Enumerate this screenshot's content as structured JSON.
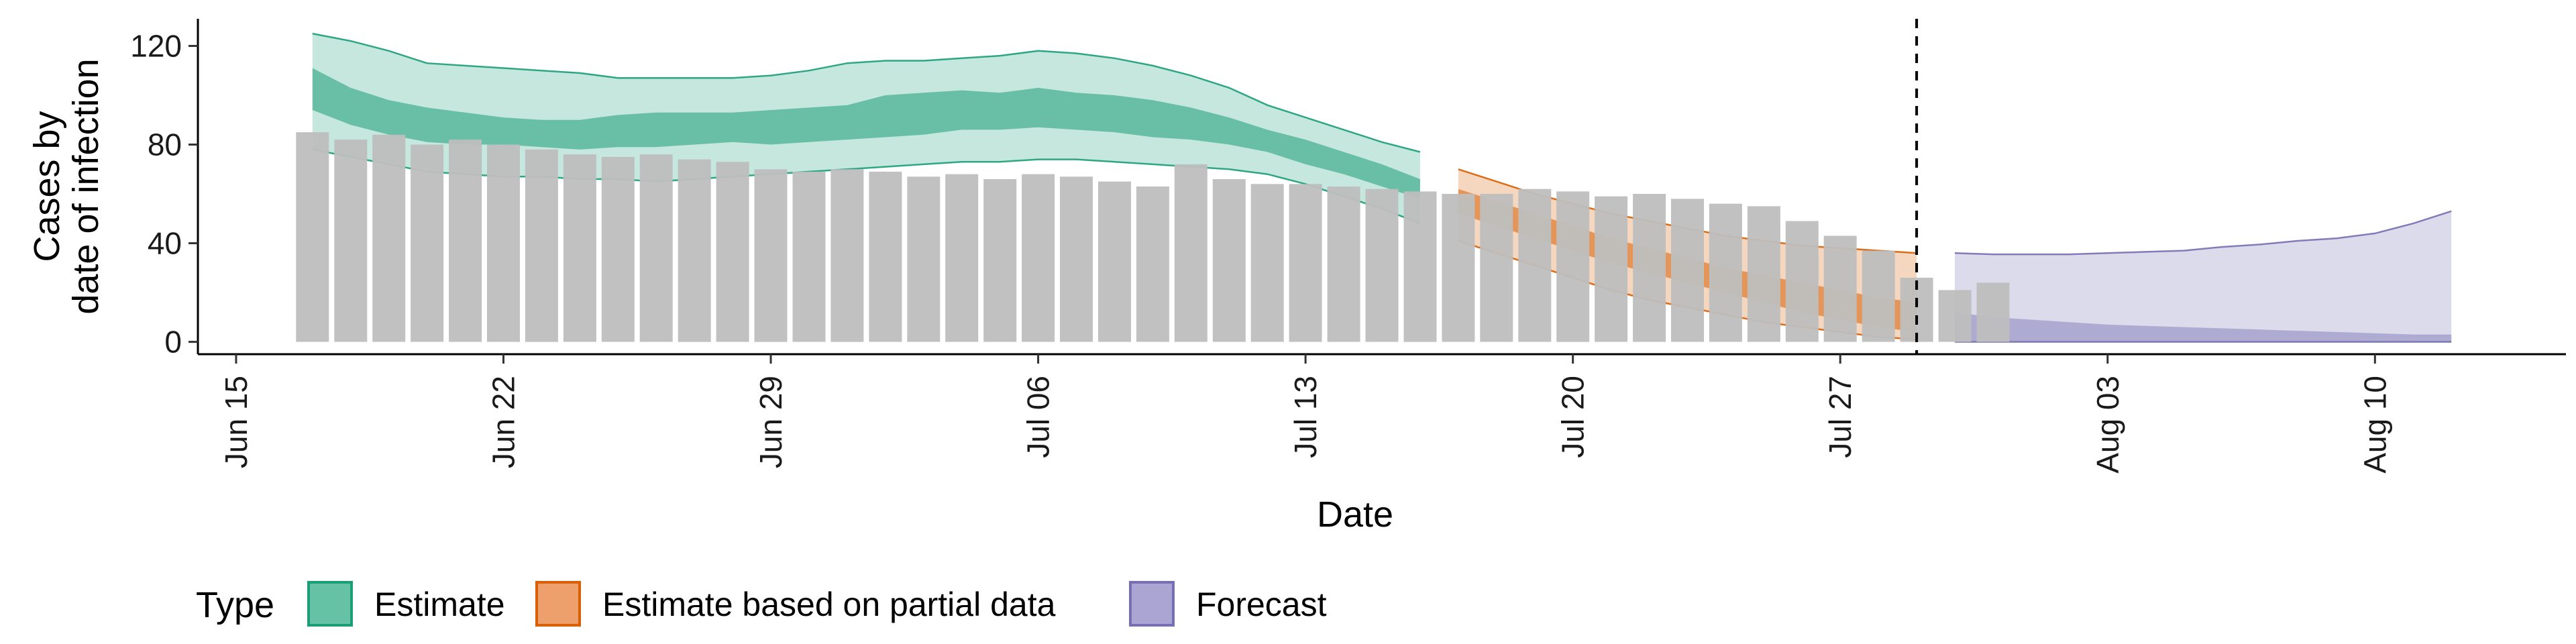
{
  "chart_data": {
    "type": "bar",
    "xlabel": "Date",
    "ylabel_lines": [
      "Cases by",
      "date of infection"
    ],
    "y_ticks": [
      0,
      40,
      80,
      120
    ],
    "ylim": [
      -5,
      131
    ],
    "xlim": [
      "2020-06-14",
      "2020-08-15"
    ],
    "x_ticks": [
      {
        "date": "2020-06-15",
        "label": "Jun 15"
      },
      {
        "date": "2020-06-22",
        "label": "Jun 22"
      },
      {
        "date": "2020-06-29",
        "label": "Jun 29"
      },
      {
        "date": "2020-07-06",
        "label": "Jul 06"
      },
      {
        "date": "2020-07-13",
        "label": "Jul 13"
      },
      {
        "date": "2020-07-20",
        "label": "Jul 20"
      },
      {
        "date": "2020-07-27",
        "label": "Jul 27"
      },
      {
        "date": "2020-08-03",
        "label": "Aug 03"
      },
      {
        "date": "2020-08-10",
        "label": "Aug 10"
      }
    ],
    "vline_date": "2020-07-29",
    "observed_cases": {
      "start_date": "2020-06-17",
      "values": [
        85,
        82,
        84,
        80,
        82,
        80,
        78,
        76,
        75,
        76,
        74,
        73,
        70,
        69,
        70,
        69,
        67,
        68,
        66,
        68,
        67,
        65,
        63,
        72,
        66,
        64,
        64,
        63,
        62,
        61,
        60,
        60,
        62,
        61,
        59,
        60,
        58,
        56,
        55,
        49,
        43,
        37,
        26,
        21,
        24
      ]
    },
    "series": [
      {
        "name": "Estimate",
        "dates": [
          "2020-06-17",
          "2020-06-18",
          "2020-06-19",
          "2020-06-20",
          "2020-06-21",
          "2020-06-22",
          "2020-06-23",
          "2020-06-24",
          "2020-06-25",
          "2020-06-26",
          "2020-06-27",
          "2020-06-28",
          "2020-06-29",
          "2020-06-30",
          "2020-07-01",
          "2020-07-02",
          "2020-07-03",
          "2020-07-04",
          "2020-07-05",
          "2020-07-06",
          "2020-07-07",
          "2020-07-08",
          "2020-07-09",
          "2020-07-10",
          "2020-07-11",
          "2020-07-12",
          "2020-07-13",
          "2020-07-14",
          "2020-07-15",
          "2020-07-16"
        ],
        "lower90": [
          78,
          75,
          72,
          69,
          68,
          67,
          67,
          66,
          66,
          65,
          66,
          67,
          68,
          69,
          70,
          71,
          72,
          73,
          73,
          74,
          74,
          73,
          72,
          71,
          70,
          68,
          64,
          59,
          54,
          48
        ],
        "lower50": [
          94,
          88,
          84,
          81,
          80,
          80,
          79,
          78,
          79,
          79,
          80,
          81,
          80,
          81,
          82,
          83,
          84,
          86,
          86,
          87,
          86,
          85,
          83,
          82,
          80,
          77,
          72,
          68,
          63,
          58
        ],
        "upper50": [
          111,
          103,
          98,
          95,
          93,
          91,
          90,
          90,
          92,
          93,
          93,
          93,
          94,
          95,
          96,
          100,
          101,
          102,
          101,
          103,
          101,
          100,
          98,
          95,
          91,
          86,
          82,
          77,
          72,
          66
        ],
        "upper90": [
          125,
          122,
          118,
          113,
          112,
          111,
          110,
          109,
          107,
          107,
          107,
          107,
          108,
          110,
          113,
          114,
          114,
          115,
          116,
          118,
          117,
          115,
          112,
          108,
          103,
          96,
          91,
          86,
          81,
          77
        ]
      },
      {
        "name": "Estimate based on partial data",
        "dates": [
          "2020-07-17",
          "2020-07-18",
          "2020-07-19",
          "2020-07-20",
          "2020-07-21",
          "2020-07-22",
          "2020-07-23",
          "2020-07-24",
          "2020-07-25",
          "2020-07-26",
          "2020-07-27",
          "2020-07-28",
          "2020-07-29"
        ],
        "lower90": [
          41,
          36,
          31,
          26,
          21,
          17,
          14,
          11,
          8,
          6,
          4,
          2,
          1
        ],
        "lower50": [
          52,
          47,
          42,
          37,
          32,
          28,
          24,
          20,
          16,
          12,
          9,
          6,
          4
        ],
        "upper50": [
          62,
          57,
          52,
          47,
          42,
          38,
          34,
          30,
          27,
          24,
          21,
          18,
          16
        ],
        "upper90": [
          70,
          65,
          60,
          56,
          52,
          49,
          46,
          43,
          41,
          39,
          38,
          37,
          36
        ]
      },
      {
        "name": "Forecast",
        "dates": [
          "2020-07-30",
          "2020-07-31",
          "2020-08-01",
          "2020-08-02",
          "2020-08-03",
          "2020-08-04",
          "2020-08-05",
          "2020-08-06",
          "2020-08-07",
          "2020-08-08",
          "2020-08-09",
          "2020-08-10",
          "2020-08-11",
          "2020-08-12"
        ],
        "lower90": [
          0,
          0,
          0,
          0,
          0,
          0,
          0,
          0,
          0,
          0,
          0,
          0,
          0,
          0
        ],
        "upper50": [
          12,
          10,
          9,
          8,
          7,
          6.5,
          6,
          5.5,
          5,
          4.5,
          4,
          3.5,
          3,
          3
        ],
        "upper90": [
          36,
          35.5,
          35.5,
          35.5,
          36,
          36.5,
          37,
          38.5,
          39.5,
          41,
          42,
          44,
          48,
          53
        ]
      }
    ],
    "legend": {
      "position": "bottom",
      "title": "Type",
      "entries": [
        "Estimate",
        "Estimate based on partial data",
        "Forecast"
      ]
    },
    "colors": {
      "bars": "#bebebe",
      "estimate_fill": "#1b9e77",
      "estimate_line": "#1b9e77",
      "partial_fill": "#d95f02",
      "partial_line": "#d95f02",
      "forecast_fill": "#7570b3",
      "forecast_line": "#7570b3",
      "legend_estimate": "#66c2a5",
      "legend_partial": "#eda06c",
      "legend_forecast": "#aaa5d2",
      "vline": "#000000"
    },
    "grid": false
  }
}
